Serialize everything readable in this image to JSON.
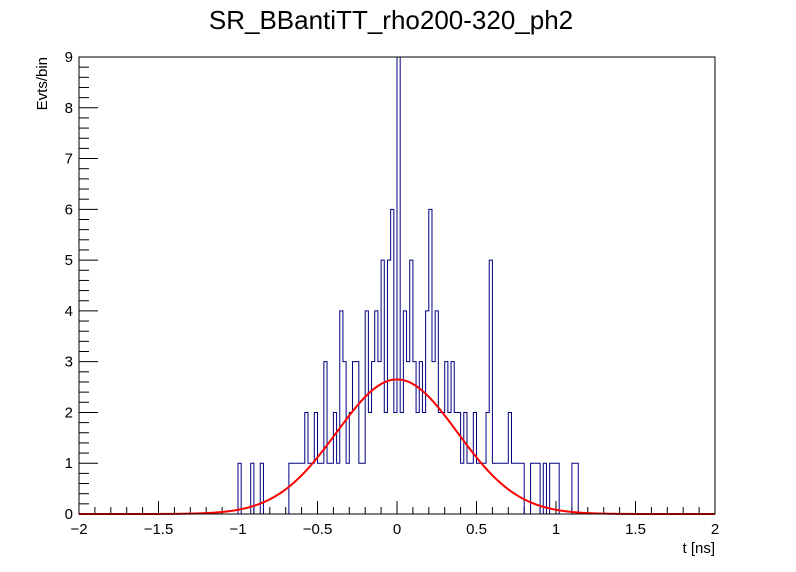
{
  "chart_data": {
    "type": "histogram",
    "title": "SR_BBantiTT_rho200-320_ph2",
    "xlabel": "t [ns]",
    "ylabel": "Evts/bin",
    "xlim": [
      -2,
      2
    ],
    "ylim": [
      0,
      9
    ],
    "x_ticks": [
      "−2",
      "−1.5",
      "−1",
      "−0.5",
      "0",
      "0.5",
      "1",
      "1.5",
      "2"
    ],
    "y_ticks": [
      "0",
      "1",
      "2",
      "3",
      "4",
      "5",
      "6",
      "7",
      "8",
      "9"
    ],
    "bin_width": 0.02,
    "histogram": {
      "name": "data",
      "color": "#000080",
      "bins": [
        {
          "x": -1.0,
          "y": 1
        },
        {
          "x": -0.92,
          "y": 1
        },
        {
          "x": -0.86,
          "y": 1
        },
        {
          "x": -0.68,
          "y": 1
        },
        {
          "x": -0.66,
          "y": 1
        },
        {
          "x": -0.64,
          "y": 1
        },
        {
          "x": -0.62,
          "y": 1
        },
        {
          "x": -0.6,
          "y": 1
        },
        {
          "x": -0.58,
          "y": 2
        },
        {
          "x": -0.56,
          "y": 1
        },
        {
          "x": -0.54,
          "y": 1
        },
        {
          "x": -0.52,
          "y": 2
        },
        {
          "x": -0.5,
          "y": 1
        },
        {
          "x": -0.48,
          "y": 1
        },
        {
          "x": -0.46,
          "y": 3
        },
        {
          "x": -0.44,
          "y": 1
        },
        {
          "x": -0.42,
          "y": 1
        },
        {
          "x": -0.4,
          "y": 2
        },
        {
          "x": -0.38,
          "y": 1
        },
        {
          "x": -0.36,
          "y": 4
        },
        {
          "x": -0.34,
          "y": 3
        },
        {
          "x": -0.32,
          "y": 1
        },
        {
          "x": -0.3,
          "y": 2
        },
        {
          "x": -0.28,
          "y": 3
        },
        {
          "x": -0.26,
          "y": 3
        },
        {
          "x": -0.24,
          "y": 1
        },
        {
          "x": -0.22,
          "y": 1
        },
        {
          "x": -0.2,
          "y": 4
        },
        {
          "x": -0.18,
          "y": 2
        },
        {
          "x": -0.16,
          "y": 3
        },
        {
          "x": -0.14,
          "y": 4
        },
        {
          "x": -0.12,
          "y": 3
        },
        {
          "x": -0.1,
          "y": 5
        },
        {
          "x": -0.08,
          "y": 2
        },
        {
          "x": -0.06,
          "y": 5
        },
        {
          "x": -0.04,
          "y": 6
        },
        {
          "x": -0.02,
          "y": 2
        },
        {
          "x": 0.0,
          "y": 9
        },
        {
          "x": 0.02,
          "y": 2
        },
        {
          "x": 0.04,
          "y": 4
        },
        {
          "x": 0.06,
          "y": 3
        },
        {
          "x": 0.08,
          "y": 5
        },
        {
          "x": 0.1,
          "y": 3
        },
        {
          "x": 0.12,
          "y": 2
        },
        {
          "x": 0.14,
          "y": 3
        },
        {
          "x": 0.16,
          "y": 2
        },
        {
          "x": 0.18,
          "y": 4
        },
        {
          "x": 0.2,
          "y": 6
        },
        {
          "x": 0.22,
          "y": 3
        },
        {
          "x": 0.24,
          "y": 4
        },
        {
          "x": 0.26,
          "y": 2
        },
        {
          "x": 0.28,
          "y": 2
        },
        {
          "x": 0.3,
          "y": 3
        },
        {
          "x": 0.32,
          "y": 2
        },
        {
          "x": 0.34,
          "y": 3
        },
        {
          "x": 0.36,
          "y": 2
        },
        {
          "x": 0.38,
          "y": 2
        },
        {
          "x": 0.4,
          "y": 1
        },
        {
          "x": 0.42,
          "y": 2
        },
        {
          "x": 0.44,
          "y": 1
        },
        {
          "x": 0.46,
          "y": 1
        },
        {
          "x": 0.48,
          "y": 2
        },
        {
          "x": 0.5,
          "y": 1
        },
        {
          "x": 0.52,
          "y": 1
        },
        {
          "x": 0.54,
          "y": 1
        },
        {
          "x": 0.56,
          "y": 2
        },
        {
          "x": 0.58,
          "y": 5
        },
        {
          "x": 0.6,
          "y": 1
        },
        {
          "x": 0.62,
          "y": 1
        },
        {
          "x": 0.64,
          "y": 1
        },
        {
          "x": 0.66,
          "y": 1
        },
        {
          "x": 0.68,
          "y": 1
        },
        {
          "x": 0.7,
          "y": 2
        },
        {
          "x": 0.72,
          "y": 1
        },
        {
          "x": 0.74,
          "y": 1
        },
        {
          "x": 0.76,
          "y": 1
        },
        {
          "x": 0.78,
          "y": 1
        },
        {
          "x": 0.84,
          "y": 1
        },
        {
          "x": 0.86,
          "y": 1
        },
        {
          "x": 0.88,
          "y": 1
        },
        {
          "x": 0.92,
          "y": 1
        },
        {
          "x": 0.96,
          "y": 1
        },
        {
          "x": 0.98,
          "y": 1
        },
        {
          "x": 1.0,
          "y": 1
        },
        {
          "x": 1.1,
          "y": 1
        },
        {
          "x": 1.12,
          "y": 1
        }
      ]
    },
    "fit": {
      "name": "gaussian fit",
      "color": "#ff0000",
      "amplitude": 2.65,
      "mean": 0.0,
      "sigma": 0.38
    }
  }
}
